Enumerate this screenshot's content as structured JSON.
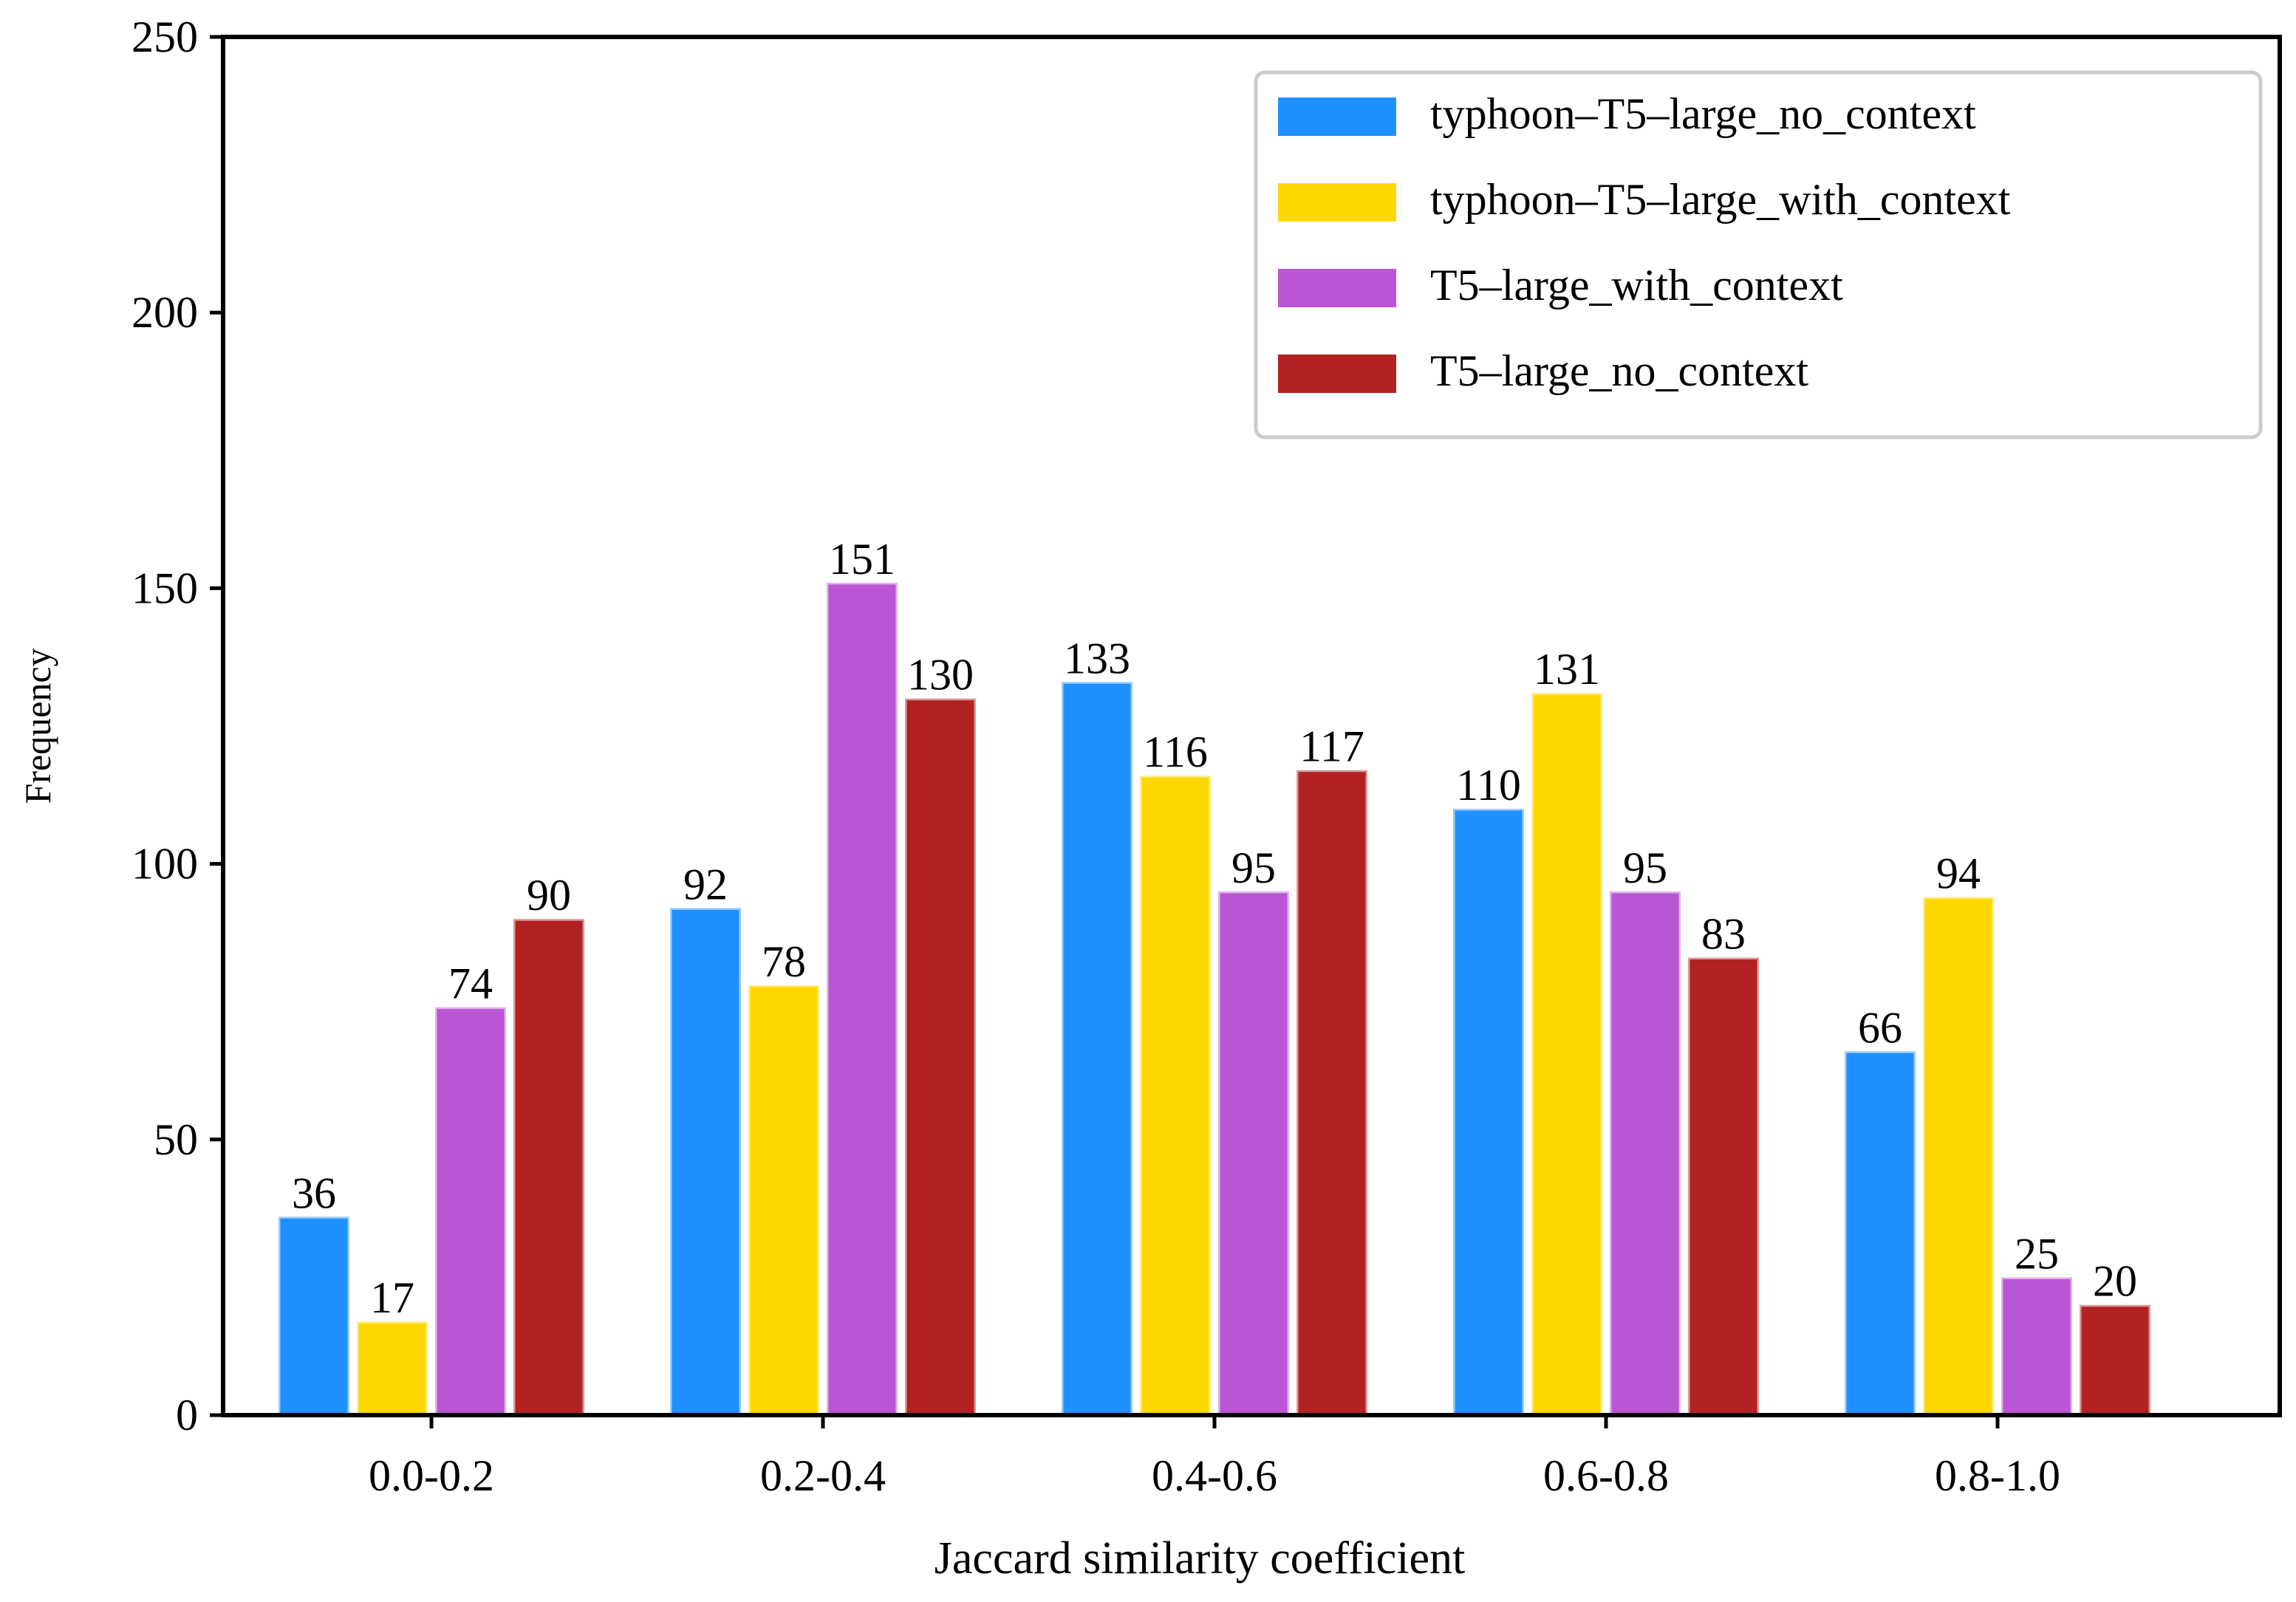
{
  "chart_data": {
    "type": "bar",
    "title": "",
    "xlabel": "Jaccard similarity coefficient",
    "ylabel": "Frequency",
    "ylim": [
      0,
      250
    ],
    "yticks": [
      0,
      50,
      100,
      150,
      200,
      250
    ],
    "categories": [
      "0.0-0.2",
      "0.2-0.4",
      "0.4-0.6",
      "0.6-0.8",
      "0.8-1.0"
    ],
    "series": [
      {
        "name": "typhoon–T5–large_no_context",
        "color": "#1e90ff",
        "values": [
          36,
          92,
          133,
          110,
          66
        ]
      },
      {
        "name": "typhoon–T5–large_with_context",
        "color": "#ffd700",
        "values": [
          17,
          78,
          116,
          131,
          94
        ]
      },
      {
        "name": "T5–large_with_context",
        "color": "#ba55d3",
        "values": [
          74,
          151,
          95,
          95,
          25
        ]
      },
      {
        "name": "T5–large_no_context",
        "color": "#b22222",
        "values": [
          90,
          130,
          117,
          83,
          20
        ]
      }
    ],
    "legend_position": "top-right",
    "grid": false
  }
}
